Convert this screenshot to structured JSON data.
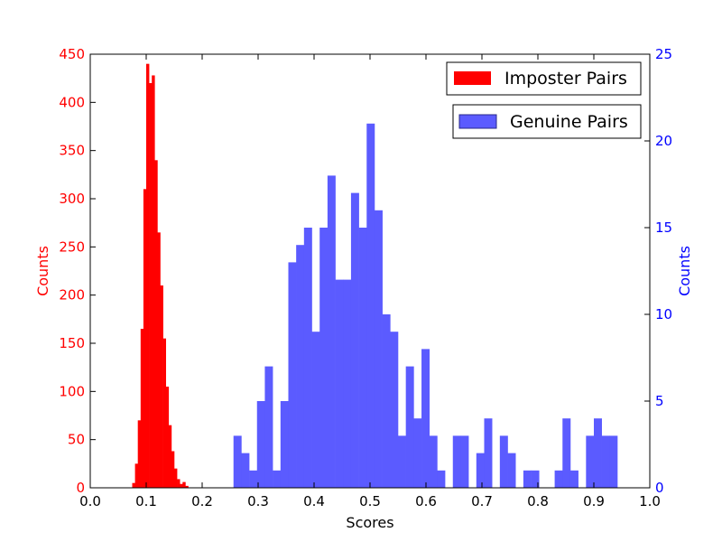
{
  "chart_data": {
    "type": "bar",
    "title": "",
    "xlabel": "Scores",
    "ylabel_left": "Counts",
    "ylabel_right": "Counts",
    "xlim": [
      0.0,
      1.0
    ],
    "ylim_left": [
      0,
      450
    ],
    "ylim_right": [
      0,
      25
    ],
    "xticks": [
      "0.0",
      "0.1",
      "0.2",
      "0.3",
      "0.4",
      "0.5",
      "0.6",
      "0.7",
      "0.8",
      "0.9",
      "1.0"
    ],
    "yticks_left": [
      "0",
      "50",
      "100",
      "150",
      "200",
      "250",
      "300",
      "350",
      "400",
      "450"
    ],
    "yticks_right": [
      "0",
      "5",
      "10",
      "15",
      "20",
      "25"
    ],
    "grid": false,
    "colors": {
      "imposter": "#ff0000",
      "genuine": "#5b5bff",
      "left_axis": "#ff0000",
      "right_axis": "#0000ff"
    },
    "series": [
      {
        "name": "Imposter Pairs",
        "axis": "left",
        "color": "#ff0000",
        "bins": [
          [
            0.075,
            0.08,
            5
          ],
          [
            0.08,
            0.085,
            25
          ],
          [
            0.085,
            0.09,
            70
          ],
          [
            0.09,
            0.095,
            165
          ],
          [
            0.095,
            0.1,
            310
          ],
          [
            0.1,
            0.105,
            440
          ],
          [
            0.105,
            0.11,
            420
          ],
          [
            0.11,
            0.115,
            428
          ],
          [
            0.115,
            0.12,
            340
          ],
          [
            0.12,
            0.125,
            265
          ],
          [
            0.125,
            0.13,
            210
          ],
          [
            0.13,
            0.135,
            155
          ],
          [
            0.135,
            0.14,
            105
          ],
          [
            0.14,
            0.145,
            65
          ],
          [
            0.145,
            0.15,
            38
          ],
          [
            0.15,
            0.155,
            20
          ],
          [
            0.155,
            0.16,
            9
          ],
          [
            0.16,
            0.165,
            4
          ],
          [
            0.165,
            0.17,
            6
          ],
          [
            0.17,
            0.175,
            2
          ]
        ]
      },
      {
        "name": "Genuine Pairs",
        "axis": "right",
        "color": "#5b5bff",
        "bins": [
          [
            0.256,
            0.27,
            3
          ],
          [
            0.27,
            0.284,
            2
          ],
          [
            0.284,
            0.298,
            1
          ],
          [
            0.298,
            0.312,
            5
          ],
          [
            0.312,
            0.326,
            7
          ],
          [
            0.326,
            0.34,
            1
          ],
          [
            0.34,
            0.354,
            5
          ],
          [
            0.354,
            0.368,
            13
          ],
          [
            0.368,
            0.382,
            14
          ],
          [
            0.382,
            0.396,
            15
          ],
          [
            0.396,
            0.41,
            9
          ],
          [
            0.41,
            0.424,
            15
          ],
          [
            0.424,
            0.438,
            18
          ],
          [
            0.438,
            0.452,
            12
          ],
          [
            0.452,
            0.466,
            12
          ],
          [
            0.466,
            0.48,
            17
          ],
          [
            0.48,
            0.494,
            15
          ],
          [
            0.494,
            0.508,
            21
          ],
          [
            0.508,
            0.522,
            16
          ],
          [
            0.522,
            0.536,
            10
          ],
          [
            0.536,
            0.55,
            9
          ],
          [
            0.55,
            0.564,
            3
          ],
          [
            0.564,
            0.578,
            7
          ],
          [
            0.578,
            0.592,
            4
          ],
          [
            0.592,
            0.606,
            8
          ],
          [
            0.606,
            0.62,
            3
          ],
          [
            0.62,
            0.634,
            1
          ],
          [
            0.634,
            0.648,
            0
          ],
          [
            0.648,
            0.662,
            3
          ],
          [
            0.662,
            0.676,
            3
          ],
          [
            0.676,
            0.69,
            0
          ],
          [
            0.69,
            0.704,
            2
          ],
          [
            0.704,
            0.718,
            4
          ],
          [
            0.718,
            0.732,
            0
          ],
          [
            0.732,
            0.746,
            3
          ],
          [
            0.746,
            0.76,
            2
          ],
          [
            0.76,
            0.774,
            0
          ],
          [
            0.774,
            0.788,
            1
          ],
          [
            0.788,
            0.802,
            1
          ],
          [
            0.802,
            0.816,
            0
          ],
          [
            0.816,
            0.83,
            0
          ],
          [
            0.83,
            0.844,
            1
          ],
          [
            0.844,
            0.858,
            4
          ],
          [
            0.858,
            0.872,
            1
          ],
          [
            0.872,
            0.886,
            0
          ],
          [
            0.886,
            0.9,
            3
          ],
          [
            0.9,
            0.914,
            4
          ],
          [
            0.914,
            0.928,
            3
          ],
          [
            0.928,
            0.942,
            3
          ]
        ]
      }
    ],
    "legend_placement": "top-right",
    "legend": [
      {
        "label": "Imposter Pairs",
        "color": "#ff0000"
      },
      {
        "label": "Genuine Pairs",
        "color": "#5b5bff"
      }
    ]
  }
}
